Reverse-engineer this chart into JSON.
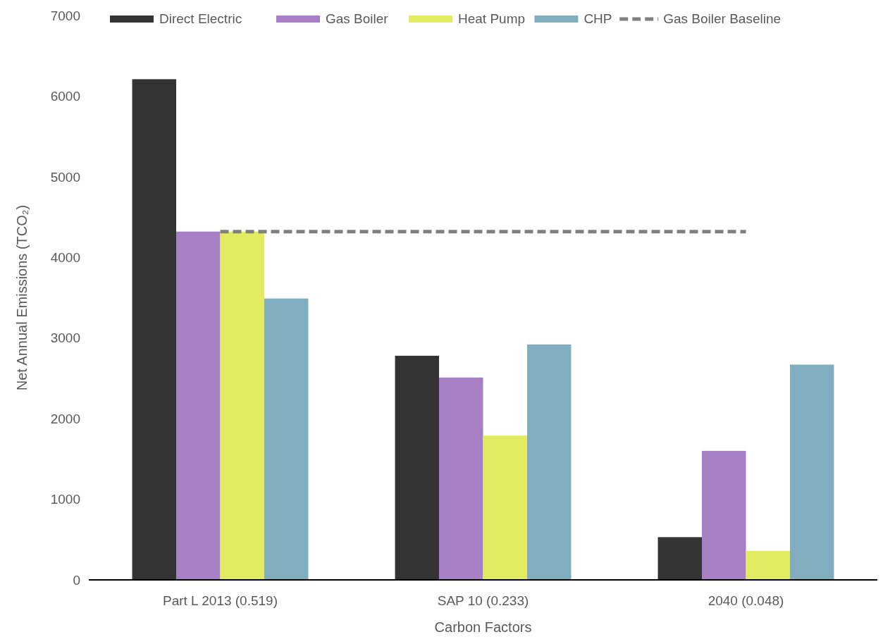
{
  "chart_data": {
    "type": "bar",
    "xlabel": "Carbon Factors",
    "ylabel": "Net Annual Emissions (TCO₂)",
    "categories": [
      "Part L 2013 (0.519)",
      "SAP 10 (0.233)",
      "2040 (0.048)"
    ],
    "series": [
      {
        "name": "Direct Electric",
        "color": "#333333",
        "values": [
          6210,
          2780,
          530
        ]
      },
      {
        "name": "Gas Boiler",
        "color": "#a67fc5",
        "values": [
          4320,
          2510,
          1600
        ]
      },
      {
        "name": "Heat Pump",
        "color": "#e2eb62",
        "values": [
          4320,
          1790,
          360
        ]
      },
      {
        "name": "CHP",
        "color": "#80aebf",
        "values": [
          3490,
          2920,
          2670
        ]
      },
      {
        "name": "Gas Boiler Baseline",
        "type": "line",
        "color": "#808080",
        "line_style": "dashed",
        "values": [
          4320,
          4320,
          4320
        ]
      }
    ],
    "ylim": [
      0,
      7000
    ],
    "yticks": [
      0,
      1000,
      2000,
      3000,
      4000,
      5000,
      6000,
      7000
    ],
    "grid": false,
    "legend": "top"
  }
}
